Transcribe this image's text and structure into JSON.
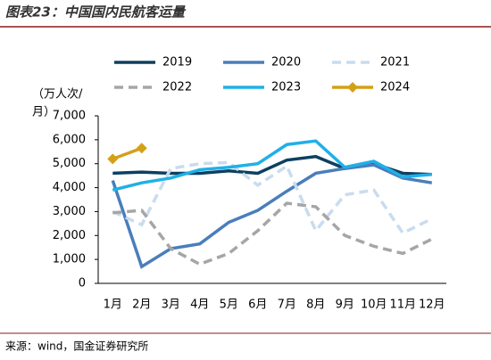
{
  "chart_data": {
    "type": "line",
    "title": "图表23：中国国内民航客运量",
    "y_label": [
      "（万人次/",
      "月）"
    ],
    "source": "来源：wind，国金证券研究所",
    "categories": [
      "1月",
      "2月",
      "3月",
      "4月",
      "5月",
      "6月",
      "7月",
      "8月",
      "9月",
      "10月",
      "11月",
      "12月"
    ],
    "ylim": [
      0,
      7000
    ],
    "yticks": [
      0,
      {
        "value": 1000,
        "label": "1,000"
      },
      {
        "value": 2000,
        "label": "2,000"
      },
      {
        "value": 3000,
        "label": "3,000"
      },
      {
        "value": 4000,
        "label": "4,000"
      },
      {
        "value": 5000,
        "label": "5,000"
      },
      {
        "value": 6000,
        "label": "6,000"
      },
      {
        "value": 7000,
        "label": "7,000"
      }
    ],
    "series": [
      {
        "name": "2019",
        "color": "#0d4060",
        "dash": false,
        "marker": false,
        "values": [
          4600,
          4650,
          4600,
          4600,
          4700,
          4600,
          5150,
          5300,
          4800,
          5000,
          4600,
          4550
        ]
      },
      {
        "name": "2020",
        "color": "#4a7ebb",
        "dash": false,
        "marker": false,
        "values": [
          4300,
          700,
          1450,
          1650,
          2550,
          3050,
          3850,
          4600,
          4800,
          4950,
          4400,
          4200
        ]
      },
      {
        "name": "2021",
        "color": "#c9dcee",
        "dash": true,
        "marker": false,
        "values": [
          3000,
          2450,
          4800,
          5000,
          5050,
          4100,
          4900,
          2200,
          3700,
          3900,
          2100,
          2700
        ]
      },
      {
        "name": "2022",
        "color": "#a6a6a6",
        "dash": true,
        "marker": false,
        "values": [
          2950,
          3050,
          1450,
          800,
          1250,
          2200,
          3350,
          3200,
          2000,
          1550,
          1250,
          1850
        ]
      },
      {
        "name": "2023",
        "color": "#1fb0e8",
        "dash": false,
        "marker": false,
        "values": [
          3900,
          4200,
          4400,
          4750,
          4850,
          5000,
          5800,
          5950,
          4850,
          5100,
          4450,
          4550
        ]
      },
      {
        "name": "2024",
        "color": "#d4a017",
        "dash": false,
        "marker": true,
        "values": [
          5200,
          5650,
          null,
          null,
          null,
          null,
          null,
          null,
          null,
          null,
          null,
          null
        ]
      }
    ]
  }
}
